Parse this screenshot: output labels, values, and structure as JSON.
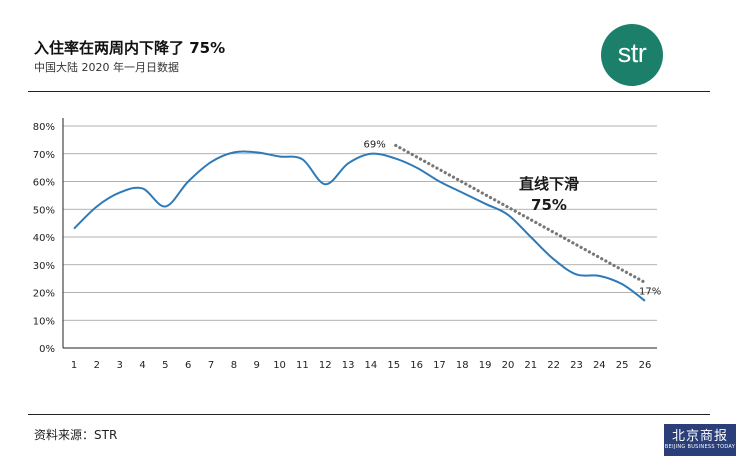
{
  "header": {
    "title": "入住率在两周内下降了 75%",
    "subtitle": "中国大陆 2020 年一月日数据"
  },
  "logo": {
    "text": "str",
    "color": "#1b7f6a"
  },
  "footer": {
    "source": "资料来源：STR"
  },
  "watermark": {
    "main": "北京商报",
    "sub": "BEIJING BUSINESS TODAY"
  },
  "chart_data": {
    "type": "line",
    "title": "",
    "xlabel": "",
    "ylabel": "",
    "grid": true,
    "ylim": [
      0,
      80
    ],
    "ytick_labels": [
      "0%",
      "10%",
      "20%",
      "30%",
      "40%",
      "50%",
      "60%",
      "70%",
      "80%"
    ],
    "categories": [
      "1",
      "2",
      "3",
      "4",
      "5",
      "6",
      "7",
      "8",
      "9",
      "10",
      "11",
      "12",
      "13",
      "14",
      "15",
      "16",
      "17",
      "18",
      "19",
      "20",
      "21",
      "22",
      "23",
      "24",
      "25",
      "26"
    ],
    "series": [
      {
        "color": "#2e7ab8",
        "values": [
          43,
          51,
          56,
          57.5,
          51,
          60,
          67,
          70.5,
          70.5,
          69,
          68,
          59,
          66.5,
          70,
          68.5,
          65,
          60,
          56,
          52,
          48,
          40,
          32,
          26.5,
          26,
          23,
          17
        ]
      }
    ],
    "trend_line": {
      "color": "#777777",
      "from": {
        "x": "15",
        "y": 73
      },
      "to": {
        "x": "26",
        "y": 24
      },
      "start_label": "69%",
      "end_label": "17%"
    },
    "annotation": {
      "line1": "直线下滑",
      "line2": "75%"
    }
  }
}
